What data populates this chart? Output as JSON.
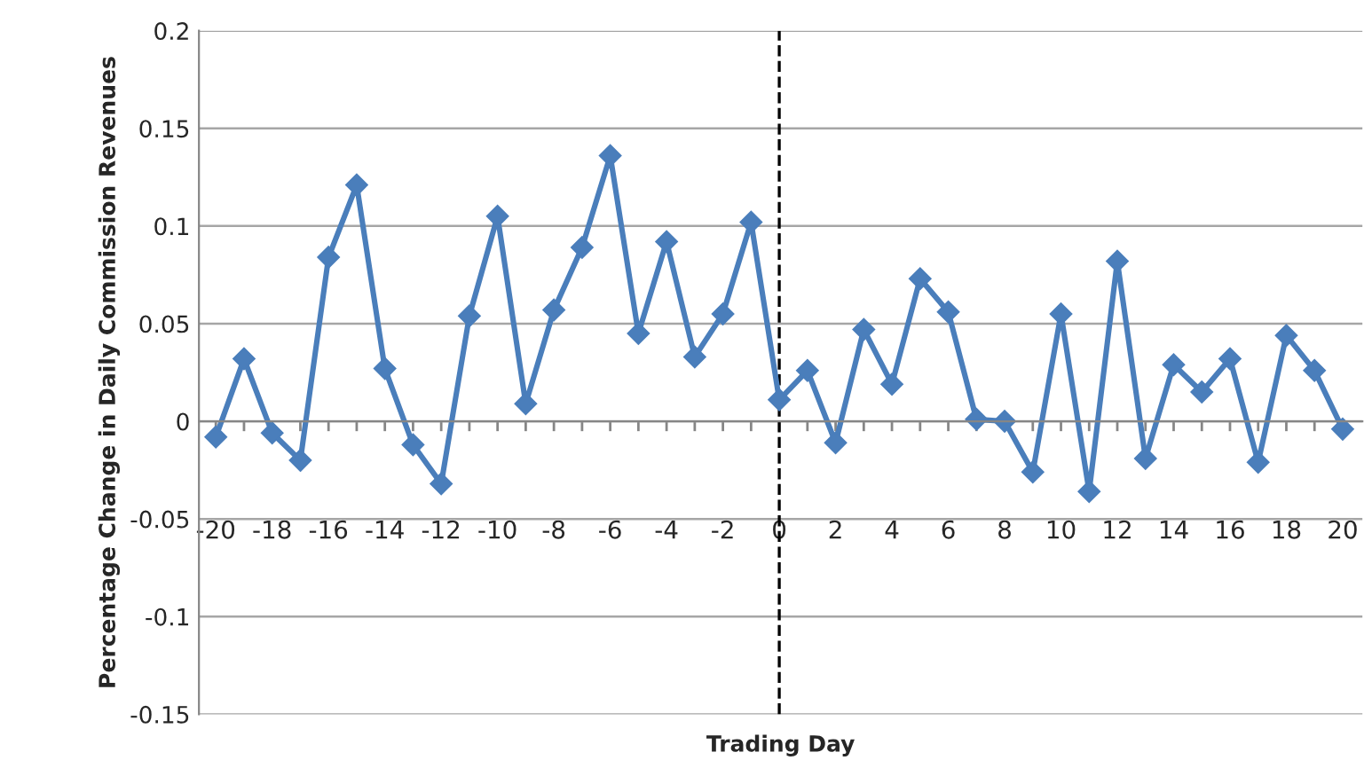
{
  "chart_data": {
    "type": "line",
    "xlabel": "Trading Day",
    "ylabel": "Percentage Change in Daily Commission Revenues",
    "x": [
      -20,
      -19,
      -18,
      -17,
      -16,
      -15,
      -14,
      -13,
      -12,
      -11,
      -10,
      -9,
      -8,
      -7,
      -6,
      -5,
      -4,
      -3,
      -2,
      -1,
      0,
      1,
      2,
      3,
      4,
      5,
      6,
      7,
      8,
      9,
      10,
      11,
      12,
      13,
      14,
      15,
      16,
      17,
      18,
      19,
      20
    ],
    "series": [
      {
        "color": "#4a7ebb",
        "values": [
          -0.008,
          0.032,
          -0.006,
          -0.02,
          0.084,
          0.121,
          0.027,
          -0.012,
          -0.032,
          0.054,
          0.105,
          0.009,
          0.057,
          0.089,
          0.136,
          0.045,
          0.092,
          0.033,
          0.055,
          0.102,
          0.011,
          0.026,
          -0.011,
          0.047,
          0.019,
          0.073,
          0.056,
          0.001,
          0.0,
          -0.026,
          0.055,
          -0.036,
          0.082,
          -0.019,
          0.029,
          0.015,
          0.032,
          -0.021,
          0.044,
          0.026,
          -0.004
        ]
      }
    ],
    "marker": "diamond",
    "line_style": "solid",
    "grid": "y",
    "legend": false,
    "xlim": [
      -20.6,
      20.7
    ],
    "xticks": [
      -20,
      {
        "value": -19,
        "label": null
      },
      -18,
      {
        "value": -17,
        "label": null
      },
      -16,
      {
        "value": -15,
        "label": null
      },
      -14,
      {
        "value": -13,
        "label": null
      },
      -12,
      {
        "value": -11,
        "label": null
      },
      -10,
      {
        "value": -9,
        "label": null
      },
      -8,
      {
        "value": -7,
        "label": null
      },
      -6,
      {
        "value": -5,
        "label": null
      },
      -4,
      {
        "value": -3,
        "label": null
      },
      -2,
      {
        "value": -1,
        "label": null
      },
      0,
      {
        "value": 1,
        "label": null
      },
      2,
      {
        "value": 3,
        "label": null
      },
      4,
      {
        "value": 5,
        "label": null
      },
      6,
      {
        "value": 7,
        "label": null
      },
      8,
      {
        "value": 9,
        "label": null
      },
      10,
      {
        "value": 11,
        "label": null
      },
      12,
      {
        "value": 13,
        "label": null
      },
      14,
      {
        "value": 15,
        "label": null
      },
      16,
      {
        "value": 17,
        "label": null
      },
      18,
      {
        "value": 19,
        "label": null
      },
      20
    ],
    "ylim": [
      -0.15,
      0.2
    ],
    "yticks": [
      -0.15,
      -0.1,
      -0.05,
      0,
      0.05,
      0.1,
      0.15,
      0.2
    ],
    "ref_lines": [
      {
        "axis": "x",
        "value": 0,
        "color": "#000000",
        "line_style": "dashed"
      }
    ]
  }
}
